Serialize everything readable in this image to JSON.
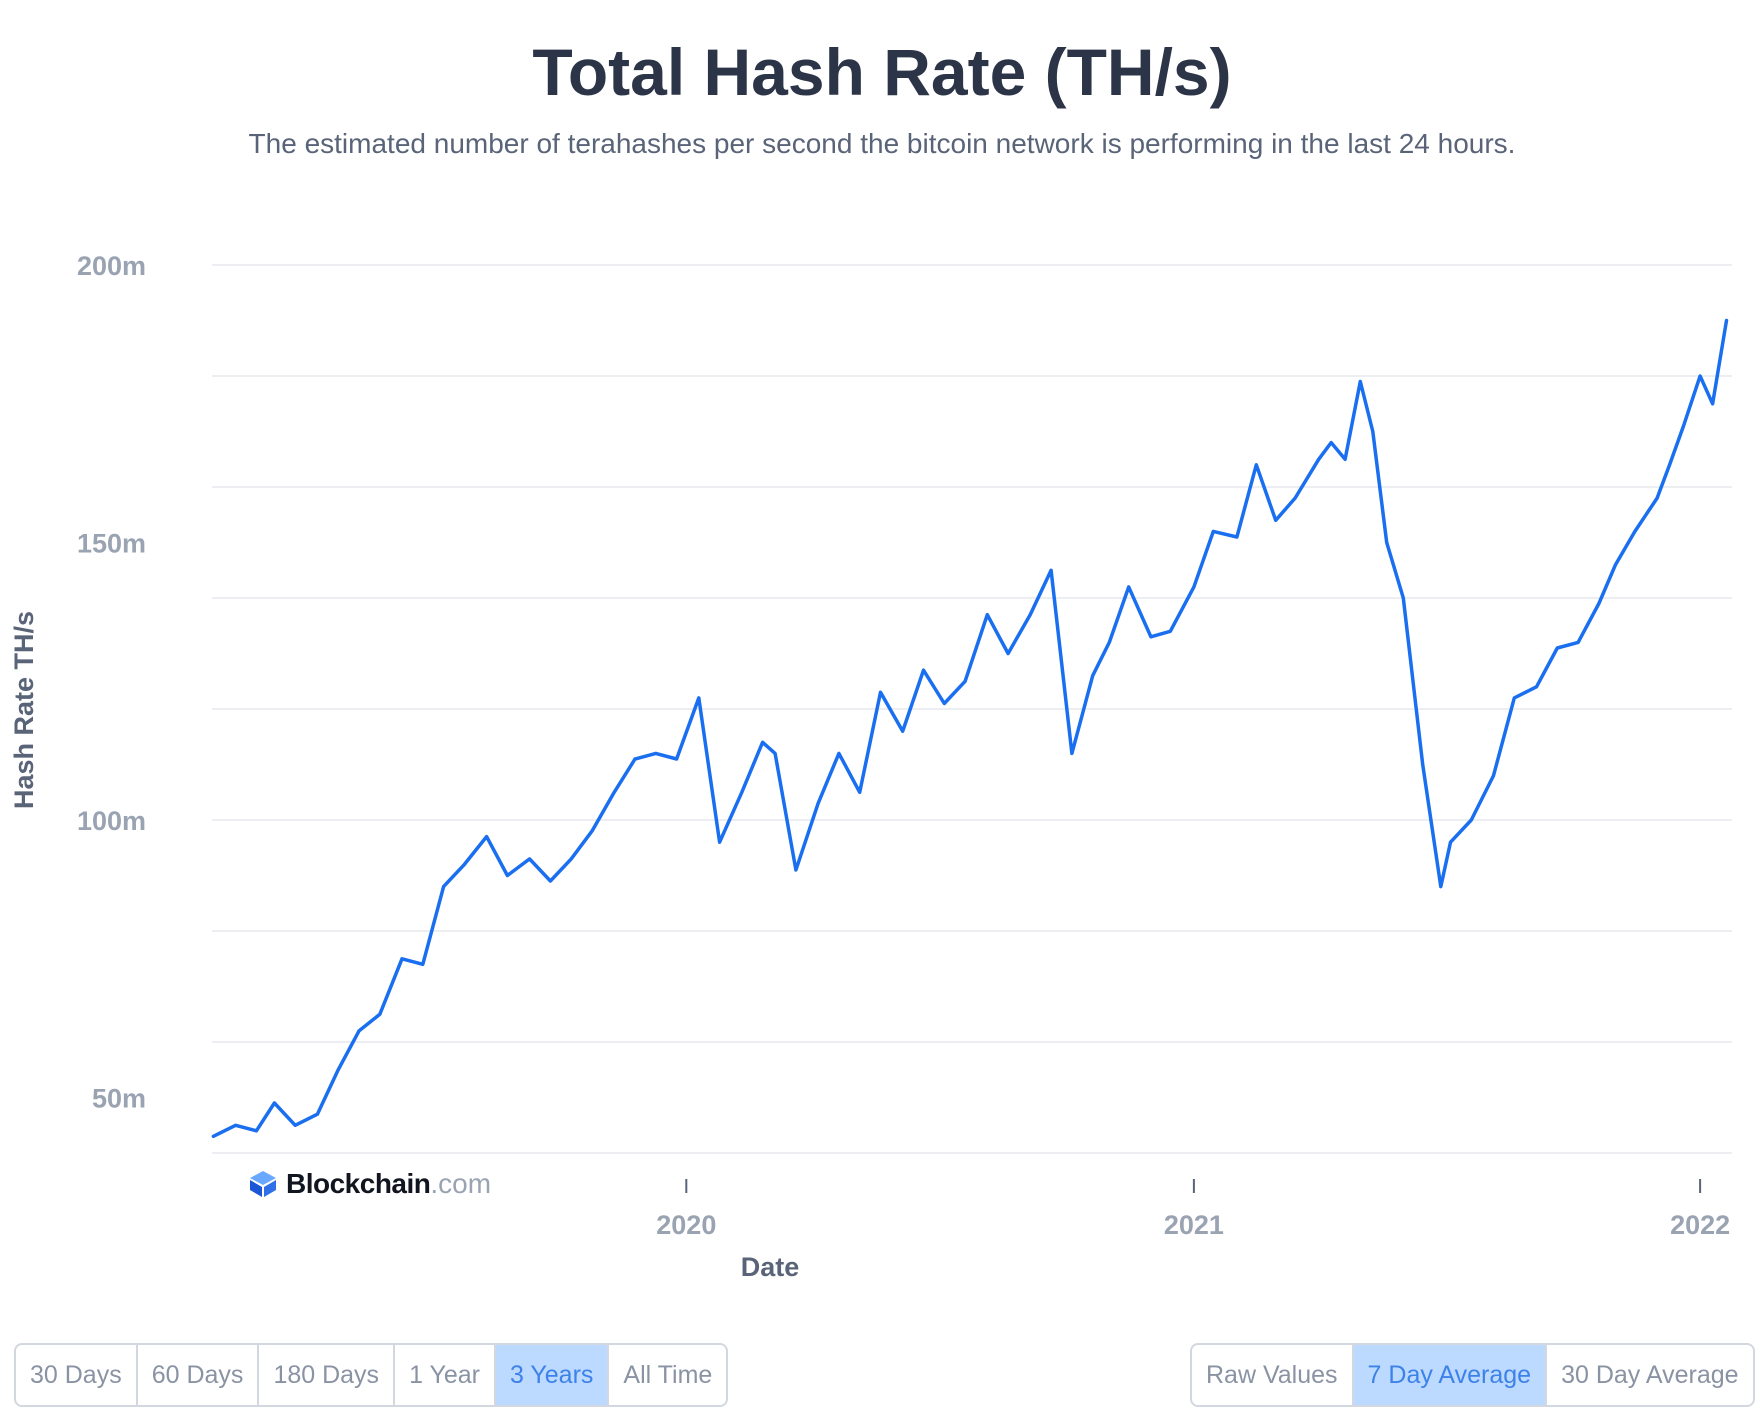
{
  "header": {
    "title": "Total Hash Rate (TH/s)",
    "subtitle": "The estimated number of terahashes per second the bitcoin network is performing in the last 24 hours."
  },
  "brand": {
    "name": "Blockchain",
    "tld": ".com"
  },
  "time_range_buttons": [
    {
      "label": "30 Days",
      "active": false
    },
    {
      "label": "60 Days",
      "active": false
    },
    {
      "label": "180 Days",
      "active": false
    },
    {
      "label": "1 Year",
      "active": false
    },
    {
      "label": "3 Years",
      "active": true
    },
    {
      "label": "All Time",
      "active": false
    }
  ],
  "averaging_buttons": [
    {
      "label": "Raw Values",
      "active": false
    },
    {
      "label": "7 Day Average",
      "active": true
    },
    {
      "label": "30 Day Average",
      "active": false
    }
  ],
  "colors": {
    "line": "#1a6ff0",
    "active_button_bg": "#bcd9ff",
    "grid": "#e6e9ee"
  },
  "chart_data": {
    "type": "line",
    "title": "Total Hash Rate (TH/s)",
    "subtitle": "The estimated number of terahashes per second the bitcoin network is performing in the last 24 hours.",
    "xlabel": "Date",
    "ylabel": "Hash Rate TH/s",
    "x_ticks": [
      "2020",
      "2021",
      "2022"
    ],
    "y_ticks": [
      "50m",
      "100m",
      "150m",
      "200m"
    ],
    "y_tick_values": [
      50,
      100,
      150,
      200
    ],
    "y_unit": "million TH/s",
    "xlim": [
      "2019-01-24",
      "2022-01-24"
    ],
    "ylim": [
      40,
      200
    ],
    "grid": true,
    "series": [
      {
        "x": [
          "2019-01-25",
          "2019-02-10",
          "2019-02-25",
          "2019-03-10",
          "2019-03-25",
          "2019-04-10",
          "2019-04-25",
          "2019-05-10",
          "2019-05-25",
          "2019-06-10",
          "2019-06-25",
          "2019-07-10",
          "2019-07-25",
          "2019-08-10",
          "2019-08-25",
          "2019-09-10",
          "2019-09-25",
          "2019-10-10",
          "2019-10-25",
          "2019-11-10",
          "2019-11-25",
          "2019-12-10",
          "2019-12-25",
          "2020-01-10",
          "2020-01-25",
          "2020-02-10",
          "2020-02-25",
          "2020-03-05",
          "2020-03-20",
          "2020-04-05",
          "2020-04-20",
          "2020-05-05",
          "2020-05-20",
          "2020-06-05",
          "2020-06-20",
          "2020-07-05",
          "2020-07-20",
          "2020-08-05",
          "2020-08-20",
          "2020-09-05",
          "2020-09-20",
          "2020-10-05",
          "2020-10-20",
          "2020-11-01",
          "2020-11-15",
          "2020-12-01",
          "2020-12-15",
          "2021-01-01",
          "2021-01-15",
          "2021-02-01",
          "2021-02-15",
          "2021-03-01",
          "2021-03-15",
          "2021-04-01",
          "2021-04-10",
          "2021-04-20",
          "2021-05-01",
          "2021-05-10",
          "2021-05-20",
          "2021-06-01",
          "2021-06-15",
          "2021-06-28",
          "2021-07-05",
          "2021-07-20",
          "2021-08-05",
          "2021-08-20",
          "2021-09-05",
          "2021-09-20",
          "2021-10-05",
          "2021-10-20",
          "2021-11-01",
          "2021-11-15",
          "2021-12-01",
          "2021-12-10",
          "2021-12-20",
          "2022-01-01",
          "2022-01-10",
          "2022-01-20"
        ],
        "values": [
          43,
          45,
          44,
          49,
          45,
          47,
          55,
          62,
          65,
          75,
          74,
          88,
          92,
          97,
          90,
          93,
          89,
          93,
          98,
          105,
          111,
          112,
          111,
          122,
          96,
          105,
          114,
          112,
          91,
          103,
          112,
          105,
          123,
          116,
          127,
          121,
          125,
          137,
          130,
          137,
          145,
          112,
          126,
          132,
          142,
          133,
          134,
          142,
          152,
          151,
          164,
          154,
          158,
          165,
          168,
          165,
          179,
          170,
          150,
          140,
          110,
          88,
          96,
          100,
          108,
          122,
          124,
          131,
          132,
          139,
          146,
          152,
          158,
          164,
          171,
          180,
          175,
          190
        ]
      }
    ]
  }
}
